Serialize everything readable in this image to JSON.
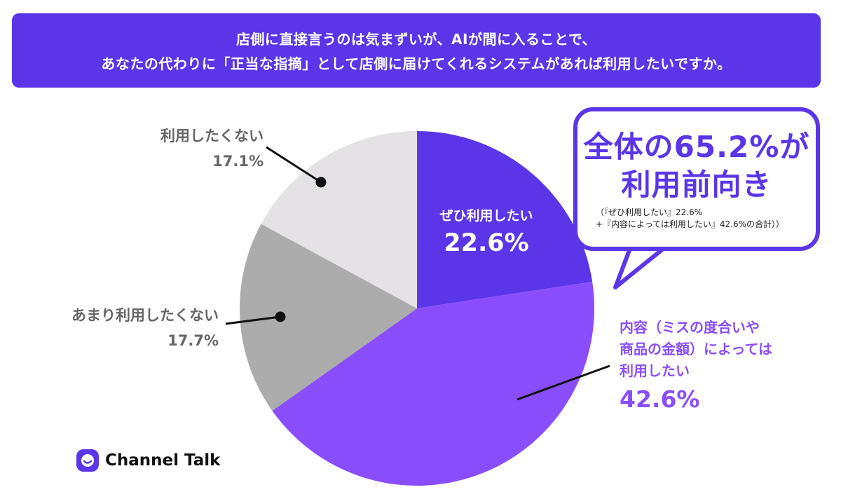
{
  "header": {
    "line1": "店側に直接言うのは気まずいが、AIが間に入ることで、",
    "line2": "あなたの代わりに「正当な指摘」として店側に届けてくれるシステムがあれば利用したいですか。"
  },
  "chart_data": {
    "type": "pie",
    "start_angle_deg": 0,
    "direction": "clockwise",
    "slices": [
      {
        "label": "ぜひ利用したい",
        "value": 22.6,
        "value_text": "22.6%",
        "color": "#5b35e8"
      },
      {
        "label": "内容（ミスの度合いや商品の金額）によっては利用したい",
        "value": 42.6,
        "value_text": "42.6%",
        "color": "#8a4dfc"
      },
      {
        "label": "あまり利用したくない",
        "value": 17.7,
        "value_text": "17.7%",
        "color": "#acacac"
      },
      {
        "label": "利用したくない",
        "value": 17.1,
        "value_text": "17.1%",
        "color": "#e4e2e4"
      }
    ],
    "callout": {
      "line1": "全体の65.2%が",
      "line2": "利用前向き",
      "note1": "（『ぜひ利用したい』22.6%",
      "note2": "+『内容によっては利用したい』42.6%の合計））"
    }
  },
  "labels": {
    "s1_title": "ぜひ利用したい",
    "s1_value": "22.6%",
    "s2_line1": "内容（ミスの度合いや",
    "s2_line2": "商品の金額）によっては",
    "s2_line3": "利用したい",
    "s2_value": "42.6%",
    "s3_title": "あまり利用したくない",
    "s3_value": "17.7%",
    "s4_title": "利用したくない",
    "s4_value": "17.1%"
  },
  "logo": {
    "text": "Channel Talk",
    "color": "#5b35e8"
  }
}
